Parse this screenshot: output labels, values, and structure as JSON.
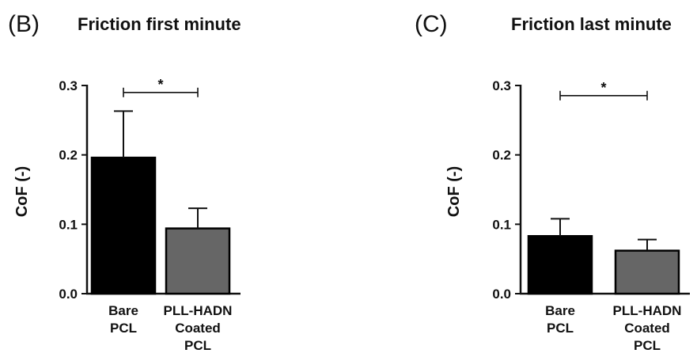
{
  "chart_data": [
    {
      "type": "bar",
      "panel_label": "(B)",
      "title": "Friction first minute",
      "ylabel": "CoF (-)",
      "ylim": [
        0,
        0.3
      ],
      "yticks": [
        "0.0",
        "0.1",
        "0.2",
        "0.3"
      ],
      "categories": [
        [
          "Bare",
          "PCL"
        ],
        [
          "PLL-HADN",
          "Coated",
          "PCL"
        ]
      ],
      "values": [
        0.196,
        0.094
      ],
      "errors": [
        0.067,
        0.029
      ],
      "colors": [
        "#000000",
        "#666666"
      ],
      "significance": {
        "between": [
          0,
          1
        ],
        "label": "*",
        "y": 0.29
      }
    },
    {
      "type": "bar",
      "panel_label": "(C)",
      "title": "Friction last minute",
      "ylabel": "CoF (-)",
      "ylim": [
        0,
        0.3
      ],
      "yticks": [
        "0.0",
        "0.1",
        "0.2",
        "0.3"
      ],
      "categories": [
        [
          "Bare",
          "PCL"
        ],
        [
          "PLL-HADN",
          "Coated",
          "PCL"
        ]
      ],
      "values": [
        0.083,
        0.062
      ],
      "errors": [
        0.025,
        0.016
      ],
      "colors": [
        "#000000",
        "#666666"
      ],
      "significance": {
        "between": [
          0,
          1
        ],
        "label": "*",
        "y": 0.29
      }
    }
  ]
}
